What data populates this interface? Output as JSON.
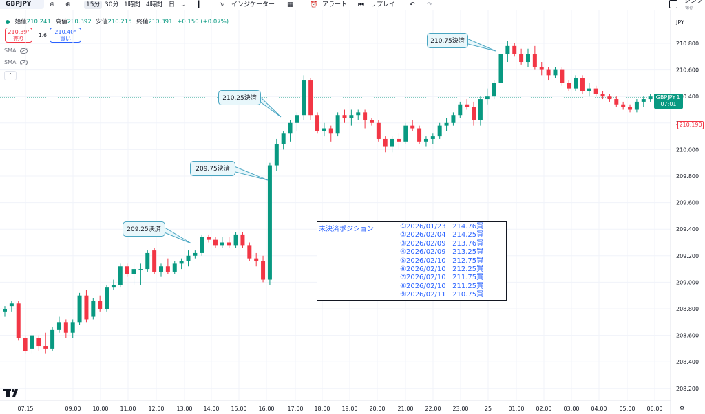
{
  "toolbar": {
    "symbol": "GBPJPY",
    "timeframes": [
      "15分",
      "30分",
      "1時間",
      "4時間",
      "日"
    ],
    "indicators_label": "インジケーター",
    "alert_label": "アラート",
    "replay_label": "リプレイ",
    "publish_label": "シンプ",
    "save_label": "保存"
  },
  "legend": {
    "open_label": "始値",
    "open": "210.241",
    "high_label": "高値",
    "high": "210.392",
    "low_label": "安値",
    "low": "210.215",
    "close_label": "終値",
    "close": "210.391",
    "change": "+0.150 (+0.07%)"
  },
  "trade": {
    "sell_price": "210.39²",
    "sell_label": "売り",
    "spread": "1.6",
    "buy_price": "210.40⁸",
    "buy_label": "買い"
  },
  "studies": [
    "SMA",
    "SMA"
  ],
  "currency": "JPY",
  "colors": {
    "up": "#089981",
    "down": "#f23645",
    "callout_border": "#4aa6c2",
    "callout_bg": "#e8f7fb",
    "position_text": "#2962ff"
  },
  "chart_data": {
    "type": "candlestick",
    "symbol": "GBPJPY",
    "interval": "15分",
    "y_ticks": [
      "210.800",
      "210.600",
      "210.400",
      "210.200",
      "210.000",
      "209.800",
      "209.600",
      "209.400",
      "209.200",
      "209.000",
      "208.800",
      "208.600",
      "208.400",
      "208.200"
    ],
    "ylim": [
      208.14,
      210.98
    ],
    "x_ticks": [
      "07:15",
      "09:00",
      "10:00",
      "11:00",
      "12:00",
      "13:00",
      "14:00",
      "15:00",
      "16:00",
      "17:00",
      "18:00",
      "19:00",
      "20:00",
      "21:00",
      "22:00",
      "23:00",
      "25",
      "01:00",
      "02:00",
      "03:00",
      "04:00",
      "05:00",
      "06:00"
    ],
    "candles": [
      [
        208.78,
        208.82,
        208.74,
        208.8
      ],
      [
        208.82,
        208.86,
        208.78,
        208.84
      ],
      [
        208.84,
        208.86,
        208.56,
        208.58
      ],
      [
        208.58,
        208.6,
        208.46,
        208.48
      ],
      [
        208.5,
        208.62,
        208.46,
        208.6
      ],
      [
        208.58,
        208.6,
        208.48,
        208.52
      ],
      [
        208.52,
        208.62,
        208.46,
        208.5
      ],
      [
        208.5,
        208.66,
        208.48,
        208.64
      ],
      [
        208.64,
        208.74,
        208.62,
        208.7
      ],
      [
        208.7,
        208.72,
        208.58,
        208.62
      ],
      [
        208.62,
        208.72,
        208.58,
        208.7
      ],
      [
        208.7,
        208.92,
        208.68,
        208.9
      ],
      [
        208.9,
        208.94,
        208.7,
        208.72
      ],
      [
        208.74,
        208.88,
        208.72,
        208.86
      ],
      [
        208.86,
        208.9,
        208.78,
        208.8
      ],
      [
        208.8,
        208.98,
        208.78,
        208.96
      ],
      [
        208.96,
        209.02,
        208.94,
        208.98
      ],
      [
        208.98,
        209.14,
        208.96,
        209.12
      ],
      [
        209.12,
        209.14,
        209.04,
        209.06
      ],
      [
        209.06,
        209.14,
        208.98,
        209.1
      ],
      [
        209.1,
        209.14,
        208.98,
        209.1
      ],
      [
        209.1,
        209.24,
        209.08,
        209.22
      ],
      [
        209.24,
        209.26,
        209.06,
        209.08
      ],
      [
        209.08,
        209.14,
        209.04,
        209.12
      ],
      [
        209.12,
        209.18,
        209.06,
        209.08
      ],
      [
        209.08,
        209.16,
        209.06,
        209.14
      ],
      [
        209.14,
        209.18,
        209.1,
        209.16
      ],
      [
        209.16,
        209.24,
        209.12,
        209.2
      ],
      [
        209.2,
        209.24,
        209.18,
        209.22
      ],
      [
        209.22,
        209.36,
        209.2,
        209.34
      ],
      [
        209.34,
        209.36,
        209.3,
        209.32
      ],
      [
        209.32,
        209.34,
        209.26,
        209.28
      ],
      [
        209.28,
        209.34,
        209.26,
        209.3
      ],
      [
        209.3,
        209.34,
        209.26,
        209.28
      ],
      [
        209.28,
        209.38,
        209.26,
        209.36
      ],
      [
        209.36,
        209.38,
        209.26,
        209.28
      ],
      [
        209.28,
        209.3,
        209.16,
        209.18
      ],
      [
        209.18,
        209.22,
        209.12,
        209.16
      ],
      [
        209.16,
        209.2,
        209.0,
        209.02
      ],
      [
        209.02,
        209.9,
        208.98,
        209.88
      ],
      [
        209.88,
        210.08,
        209.84,
        210.04
      ],
      [
        210.04,
        210.14,
        210.0,
        210.12
      ],
      [
        210.12,
        210.22,
        210.06,
        210.2
      ],
      [
        210.2,
        210.28,
        210.14,
        210.26
      ],
      [
        210.26,
        210.56,
        210.22,
        210.52
      ],
      [
        210.52,
        210.54,
        210.22,
        210.26
      ],
      [
        210.26,
        210.28,
        210.12,
        210.14
      ],
      [
        210.14,
        210.2,
        210.1,
        210.16
      ],
      [
        210.16,
        210.18,
        210.06,
        210.12
      ],
      [
        210.12,
        210.28,
        210.1,
        210.26
      ],
      [
        210.26,
        210.3,
        210.2,
        210.24
      ],
      [
        210.24,
        210.3,
        210.18,
        210.26
      ],
      [
        210.26,
        210.3,
        210.22,
        210.28
      ],
      [
        210.28,
        210.3,
        210.16,
        210.22
      ],
      [
        210.22,
        210.24,
        210.18,
        210.2
      ],
      [
        210.2,
        210.22,
        210.06,
        210.08
      ],
      [
        210.08,
        210.1,
        209.98,
        210.02
      ],
      [
        210.02,
        210.1,
        209.98,
        210.08
      ],
      [
        210.08,
        210.12,
        210.0,
        210.06
      ],
      [
        210.06,
        210.2,
        210.04,
        210.18
      ],
      [
        210.18,
        210.22,
        210.14,
        210.16
      ],
      [
        210.16,
        210.18,
        210.04,
        210.06
      ],
      [
        210.06,
        210.1,
        210.02,
        210.08
      ],
      [
        210.08,
        210.12,
        210.04,
        210.1
      ],
      [
        210.1,
        210.2,
        210.08,
        210.18
      ],
      [
        210.18,
        210.24,
        210.14,
        210.2
      ],
      [
        210.2,
        210.28,
        210.18,
        210.26
      ],
      [
        210.26,
        210.36,
        210.24,
        210.34
      ],
      [
        210.34,
        210.38,
        210.3,
        210.32
      ],
      [
        210.32,
        210.36,
        210.18,
        210.22
      ],
      [
        210.22,
        210.4,
        210.18,
        210.38
      ],
      [
        210.38,
        210.46,
        210.34,
        210.4
      ],
      [
        210.4,
        210.52,
        210.38,
        210.5
      ],
      [
        210.5,
        210.74,
        210.48,
        210.72
      ],
      [
        210.72,
        210.82,
        210.66,
        210.78
      ],
      [
        210.78,
        210.8,
        210.7,
        210.72
      ],
      [
        210.72,
        210.76,
        210.64,
        210.66
      ],
      [
        210.66,
        210.76,
        210.62,
        210.72
      ],
      [
        210.72,
        210.78,
        210.6,
        210.62
      ],
      [
        210.62,
        210.66,
        210.56,
        210.6
      ],
      [
        210.6,
        210.62,
        210.52,
        210.56
      ],
      [
        210.56,
        210.62,
        210.54,
        210.6
      ],
      [
        210.6,
        210.62,
        210.48,
        210.5
      ],
      [
        210.5,
        210.52,
        210.44,
        210.46
      ],
      [
        210.46,
        210.56,
        210.44,
        210.54
      ],
      [
        210.54,
        210.56,
        210.42,
        210.44
      ],
      [
        210.44,
        210.5,
        210.4,
        210.46
      ],
      [
        210.46,
        210.48,
        210.4,
        210.42
      ],
      [
        210.42,
        210.44,
        210.38,
        210.4
      ],
      [
        210.4,
        210.42,
        210.36,
        210.38
      ],
      [
        210.38,
        210.4,
        210.32,
        210.34
      ],
      [
        210.34,
        210.36,
        210.3,
        210.32
      ],
      [
        210.32,
        210.34,
        210.28,
        210.3
      ],
      [
        210.3,
        210.38,
        210.28,
        210.36
      ],
      [
        210.36,
        210.4,
        210.32,
        210.38
      ],
      [
        210.38,
        210.42,
        210.36,
        210.4
      ],
      [
        210.4,
        210.42,
        210.36,
        210.39
      ]
    ],
    "current_price": "210.391",
    "countdown": "07:01",
    "alert_price": "210.190",
    "callouts": [
      "209.25決済",
      "209.75決済",
      "210.25決済",
      "210.75決済"
    ],
    "position_title": "未決済ポジション",
    "positions": [
      "①2026/01/23   214.76買",
      "②2026/02/04   214.25買",
      "③2026/02/09   213.76買",
      "④2026/02/09   213.25買",
      "⑤2026/02/10   212.75買",
      "⑥2026/02/10   212.25買",
      "⑦2026/02/10   211.75買",
      "⑧2026/02/10   211.25買",
      "⑨2026/02/11   210.75買"
    ]
  }
}
